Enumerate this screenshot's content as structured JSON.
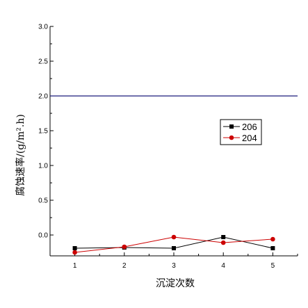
{
  "chart_data": {
    "type": "line",
    "title": "",
    "xlabel": "沉淀次数",
    "ylabel": "腐蚀速率/(g/m².h)",
    "x": [
      1,
      2,
      3,
      4,
      5
    ],
    "x_tick_labels": [
      "1",
      "2",
      "3",
      "4",
      "5"
    ],
    "y_tick_labels": [
      "0.0",
      "0.5",
      "1.0",
      "1.5",
      "2.0",
      "2.5",
      "3.0"
    ],
    "xlim": [
      0.5,
      5.5
    ],
    "ylim": [
      -0.3,
      3.0
    ],
    "y_ticks": [
      0.0,
      0.5,
      1.0,
      1.5,
      2.0,
      2.5,
      3.0
    ],
    "grid": false,
    "legend_position": "right",
    "reference_lines": [
      {
        "y": 2.0,
        "color": "#1a1a7a"
      }
    ],
    "series": [
      {
        "name": "206",
        "values": [
          -0.19,
          -0.18,
          -0.19,
          -0.03,
          -0.19
        ],
        "color": "#000000",
        "marker": "square"
      },
      {
        "name": "204",
        "values": [
          -0.25,
          -0.17,
          -0.03,
          -0.11,
          -0.06
        ],
        "color": "#cc0000",
        "marker": "circle"
      }
    ]
  }
}
